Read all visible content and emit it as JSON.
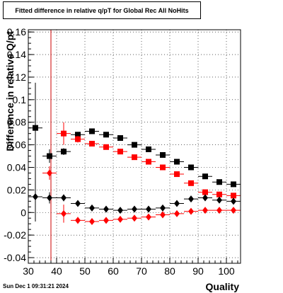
{
  "chart_data": {
    "type": "scatter",
    "title": "Fitted difference in relative q/pT for Global Rec All NoHits",
    "xlabel": "Quality",
    "ylabel": "Difference in relative Q/pt",
    "xlim": [
      30,
      105
    ],
    "ylim": [
      -0.045,
      0.162
    ],
    "xticks": [
      30,
      40,
      50,
      60,
      70,
      80,
      90,
      100
    ],
    "yticks": [
      -0.04,
      -0.02,
      0,
      0.02,
      0.04,
      0.06,
      0.08,
      0.1,
      0.12,
      0.14,
      0.16
    ],
    "ytick_labels": [
      "-0.04",
      "-0.02",
      "0",
      "0.02",
      "0.04",
      "0.06",
      "0.08",
      "0.1",
      "0.12",
      "0.14",
      "0.16"
    ],
    "grid": true,
    "cut_line_x": 38,
    "colors": {
      "black": "#000000",
      "red": "#ff0000",
      "cut_line": "#cc0000"
    },
    "series": [
      {
        "marker": "square",
        "color": "#000000",
        "x": [
          32.5,
          37.5,
          42.5,
          47.5,
          52.5,
          57.5,
          62.5,
          67.5,
          72.5,
          77.5,
          82.5,
          87.5,
          92.5,
          97.5,
          102.5
        ],
        "y": [
          0.075,
          0.05,
          0.054,
          0.069,
          0.072,
          0.069,
          0.066,
          0.06,
          0.056,
          0.051,
          0.045,
          0.04,
          0.032,
          0.027,
          0.025
        ],
        "yerr": [
          0.04,
          0.006,
          0.003,
          0.002,
          0.002,
          0.002,
          0.002,
          0.002,
          0.002,
          0.002,
          0.002,
          0.002,
          0.002,
          0.002,
          0.002
        ]
      },
      {
        "marker": "square",
        "color": "#ff0000",
        "x": [
          42.5,
          47.5,
          52.5,
          57.5,
          62.5,
          67.5,
          72.5,
          77.5,
          82.5,
          87.5,
          92.5,
          97.5,
          102.5
        ],
        "y": [
          0.07,
          0.065,
          0.061,
          0.058,
          0.054,
          0.049,
          0.045,
          0.04,
          0.034,
          0.026,
          0.018,
          0.016,
          0.015
        ],
        "yerr": [
          0.01,
          0.003,
          0.002,
          0.002,
          0.002,
          0.002,
          0.002,
          0.002,
          0.002,
          0.002,
          0.002,
          0.002,
          0.002
        ]
      },
      {
        "marker": "diamond",
        "color": "#000000",
        "x": [
          32.5,
          37.5,
          42.5,
          47.5,
          52.5,
          57.5,
          62.5,
          67.5,
          72.5,
          77.5,
          82.5,
          87.5,
          92.5,
          97.5,
          102.5
        ],
        "y": [
          0.014,
          0.013,
          0.013,
          0.008,
          0.004,
          0.003,
          0.002,
          0.003,
          0.003,
          0.004,
          0.008,
          0.012,
          0.013,
          0.011,
          0.01
        ],
        "yerr": [
          0.022,
          0.005,
          0.003,
          0.002,
          0.002,
          0.002,
          0.002,
          0.002,
          0.002,
          0.002,
          0.002,
          0.002,
          0.002,
          0.002,
          0.002
        ]
      },
      {
        "marker": "diamond",
        "color": "#ff0000",
        "x": [
          37.5,
          42.5,
          47.5,
          52.5,
          57.5,
          62.5,
          67.5,
          72.5,
          77.5,
          82.5,
          87.5,
          92.5,
          97.5,
          102.5
        ],
        "y": [
          0.035,
          -0.001,
          -0.007,
          -0.008,
          -0.007,
          -0.006,
          -0.005,
          -0.004,
          -0.002,
          -0.001,
          0.001,
          0.002,
          0.002,
          0.002
        ],
        "yerr": [
          0.006,
          0.008,
          0.003,
          0.002,
          0.002,
          0.002,
          0.002,
          0.002,
          0.002,
          0.002,
          0.002,
          0.002,
          0.002,
          0.002
        ]
      }
    ]
  },
  "footer": {
    "timestamp": "Sun Dec  1 09:31:21 2024"
  }
}
